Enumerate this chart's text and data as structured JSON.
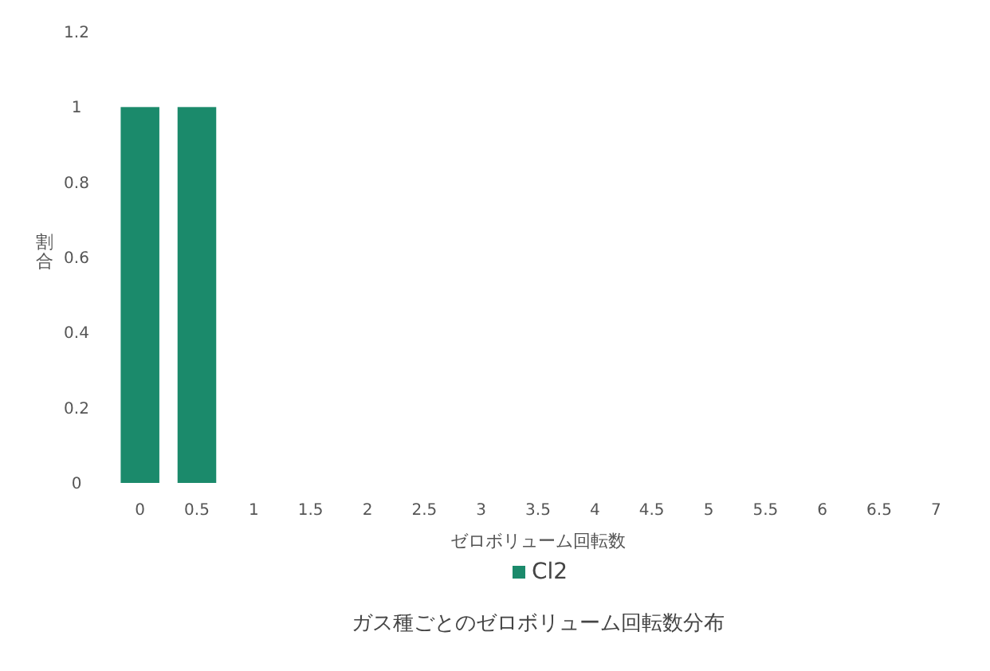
{
  "chart_data": {
    "type": "bar",
    "title": "ガス種ごとのゼロボリューム回転数分布",
    "xlabel": "ゼロボリューム回転数",
    "ylabel": "割合",
    "categories": [
      "0",
      "0.5",
      "1",
      "1.5",
      "2",
      "2.5",
      "3",
      "3.5",
      "4",
      "4.5",
      "5",
      "5.5",
      "6",
      "6.5",
      "7"
    ],
    "series": [
      {
        "name": "Cl2",
        "color": "#1b8a6b",
        "values": [
          1,
          1,
          0,
          0,
          0,
          0,
          0,
          0,
          0,
          0,
          0,
          0,
          0,
          0,
          0
        ]
      }
    ],
    "ylim": [
      0,
      1.2
    ],
    "yticks": [
      0,
      0.2,
      0.4,
      0.6,
      0.8,
      1,
      1.2
    ],
    "grid": false,
    "legend": "bottom"
  }
}
